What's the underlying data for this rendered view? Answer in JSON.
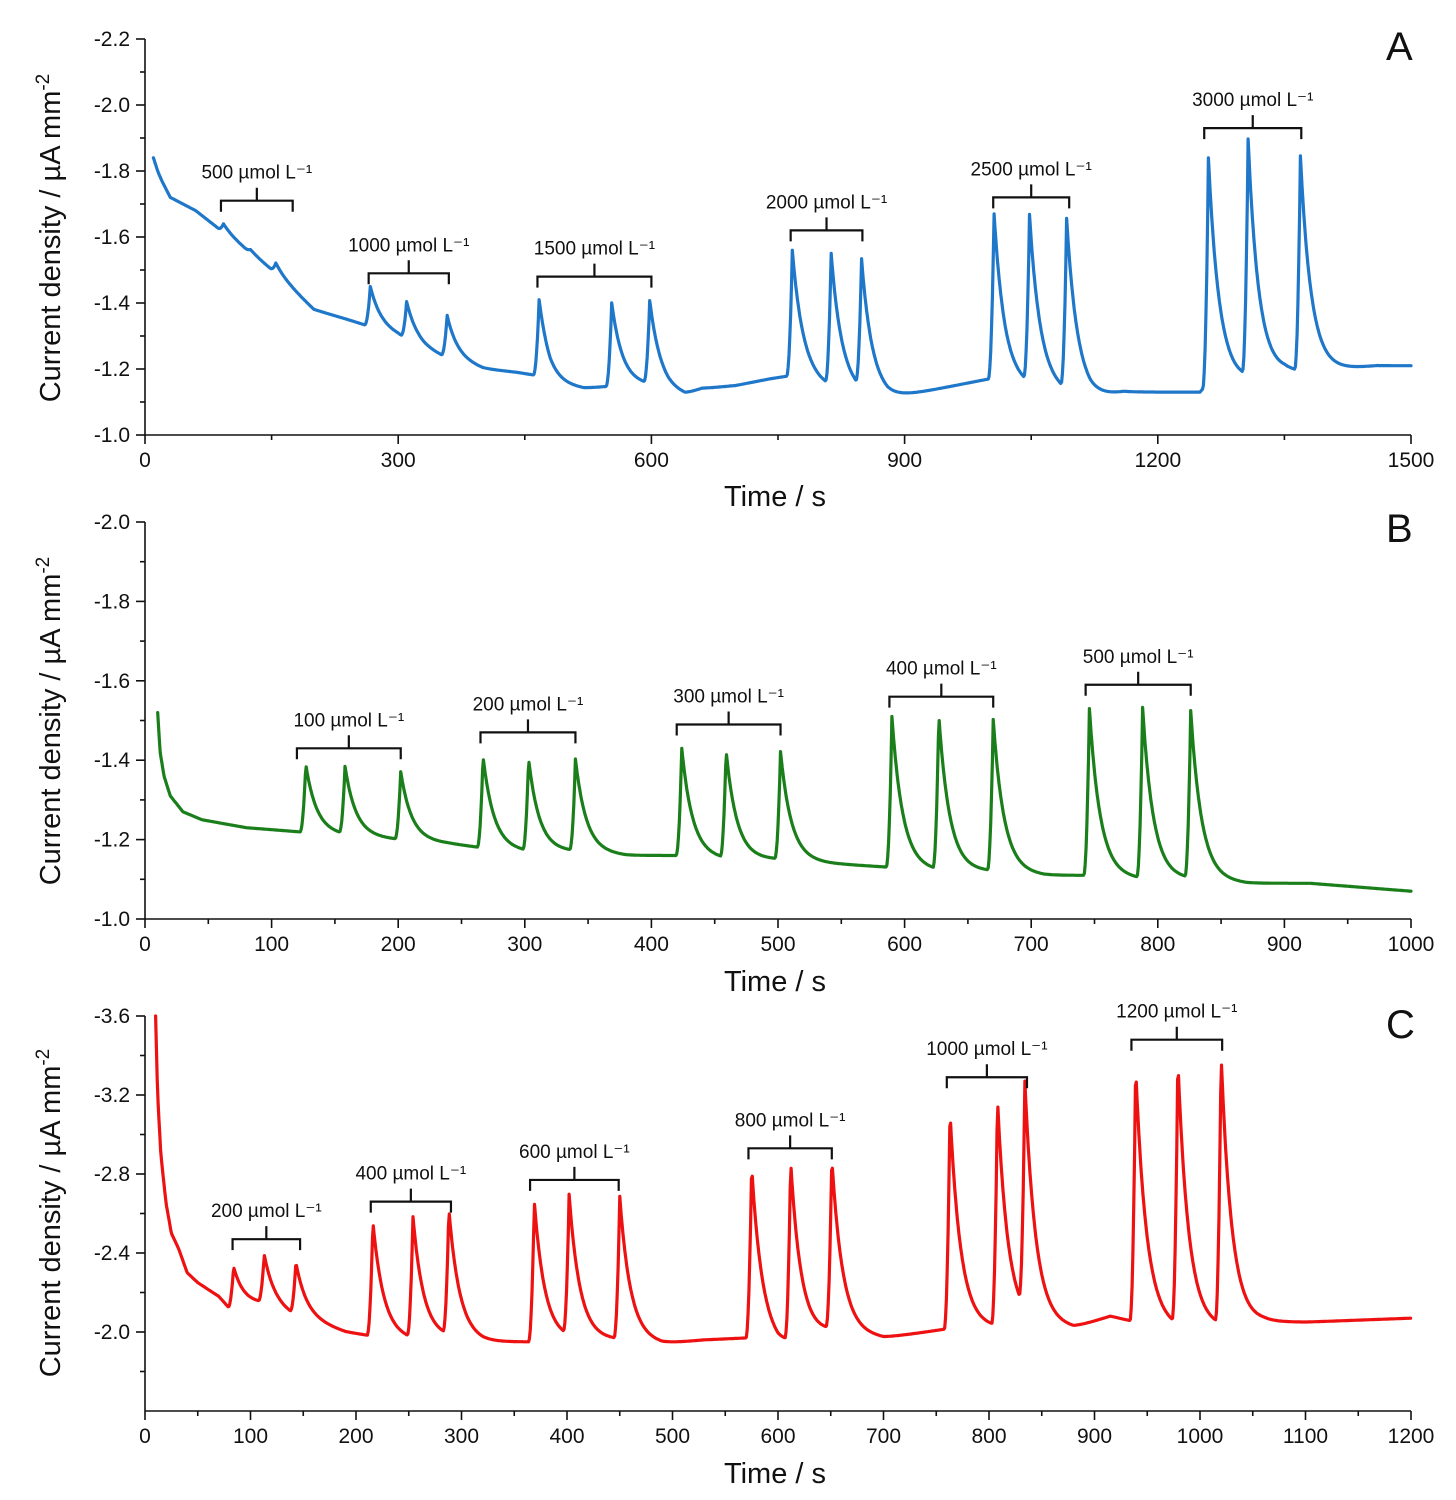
{
  "chart_data": [
    {
      "type": "line",
      "panel": "A",
      "color": "#1f77c9",
      "xlabel": "Time / s",
      "ylabel": "Current density / µA mm",
      "ylabel_sup": "-2",
      "xlim": [
        0,
        1500
      ],
      "ylim": [
        -1.0,
        -2.2
      ],
      "xticks": [
        0,
        300,
        600,
        900,
        1200,
        1500
      ],
      "yticks": [
        "-1.0",
        "-1.2",
        "-1.4",
        "-1.6",
        "-1.8",
        "-2.0",
        "-2.2"
      ],
      "ytick_values": [
        -1.0,
        -1.2,
        -1.4,
        -1.6,
        -1.8,
        -2.0,
        -2.2
      ],
      "baseline": [
        [
          10,
          -1.84
        ],
        [
          15,
          -1.8
        ],
        [
          20,
          -1.77
        ],
        [
          30,
          -1.72
        ],
        [
          60,
          -1.68
        ],
        [
          90,
          -1.62
        ],
        [
          120,
          -1.56
        ],
        [
          150,
          -1.5
        ],
        [
          175,
          -1.44
        ],
        [
          200,
          -1.38
        ],
        [
          240,
          -1.35
        ],
        [
          265,
          -1.33
        ],
        [
          300,
          -1.3
        ],
        [
          330,
          -1.26
        ],
        [
          360,
          -1.23
        ],
        [
          400,
          -1.2
        ],
        [
          440,
          -1.19
        ],
        [
          465,
          -1.18
        ],
        [
          480,
          -1.15
        ],
        [
          520,
          -1.14
        ],
        [
          560,
          -1.15
        ],
        [
          600,
          -1.15
        ],
        [
          620,
          -1.13
        ],
        [
          640,
          -1.12
        ],
        [
          660,
          -1.14
        ],
        [
          700,
          -1.15
        ],
        [
          740,
          -1.17
        ],
        [
          765,
          -1.18
        ],
        [
          800,
          -1.15
        ],
        [
          850,
          -1.12
        ],
        [
          880,
          -1.11
        ],
        [
          920,
          -1.13
        ],
        [
          960,
          -1.15
        ],
        [
          1000,
          -1.17
        ],
        [
          1020,
          -1.15
        ],
        [
          1060,
          -1.14
        ],
        [
          1100,
          -1.12
        ],
        [
          1120,
          -1.11
        ],
        [
          1160,
          -1.13
        ],
        [
          1200,
          -1.13
        ],
        [
          1250,
          -1.13
        ],
        [
          1260,
          -1.16
        ],
        [
          1290,
          -1.16
        ],
        [
          1320,
          -1.17
        ],
        [
          1350,
          -1.19
        ],
        [
          1380,
          -1.19
        ],
        [
          1420,
          -1.2
        ],
        [
          1460,
          -1.21
        ],
        [
          1500,
          -1.21
        ]
      ],
      "peaks": [
        [
          93,
          -1.64
        ],
        [
          125,
          -1.56
        ],
        [
          155,
          -1.52
        ],
        [
          267,
          -1.45
        ],
        [
          310,
          -1.4
        ],
        [
          358,
          -1.36
        ],
        [
          467,
          -1.41
        ],
        [
          553,
          -1.4
        ],
        [
          598,
          -1.4
        ],
        [
          767,
          -1.56
        ],
        [
          813,
          -1.54
        ],
        [
          849,
          -1.51
        ],
        [
          1006,
          -1.67
        ],
        [
          1048,
          -1.65
        ],
        [
          1092,
          -1.64
        ],
        [
          1260,
          -1.84
        ],
        [
          1307,
          -1.88
        ],
        [
          1369,
          -1.84
        ]
      ],
      "annotations": [
        {
          "text": "500 µmol L⁻¹",
          "x_start": 90,
          "x_end": 175,
          "y": -1.71
        },
        {
          "text": "1000 µmol L⁻¹",
          "x_start": 265,
          "x_end": 360,
          "y": -1.49
        },
        {
          "text": "1500 µmol L⁻¹",
          "x_start": 465,
          "x_end": 600,
          "y": -1.48
        },
        {
          "text": "2000 µmol L⁻¹",
          "x_start": 765,
          "x_end": 850,
          "y": -1.62
        },
        {
          "text": "2500 µmol L⁻¹",
          "x_start": 1005,
          "x_end": 1095,
          "y": -1.72
        },
        {
          "text": "3000 µmol L⁻¹",
          "x_start": 1255,
          "x_end": 1370,
          "y": -1.93
        }
      ]
    },
    {
      "type": "line",
      "panel": "B",
      "color": "#1a7f1a",
      "xlabel": "Time / s",
      "ylabel": "Current density / µA mm",
      "ylabel_sup": "-2",
      "xlim": [
        0,
        1000
      ],
      "ylim": [
        -1.0,
        -2.0
      ],
      "xticks": [
        0,
        100,
        200,
        300,
        400,
        500,
        600,
        700,
        800,
        900,
        1000
      ],
      "yticks": [
        "-1.0",
        "-1.2",
        "-1.4",
        "-1.6",
        "-1.8",
        "-2.0"
      ],
      "ytick_values": [
        -1.0,
        -1.2,
        -1.4,
        -1.6,
        -1.8,
        -2.0
      ],
      "baseline": [
        [
          10,
          -1.52
        ],
        [
          12,
          -1.42
        ],
        [
          15,
          -1.36
        ],
        [
          20,
          -1.31
        ],
        [
          30,
          -1.27
        ],
        [
          45,
          -1.25
        ],
        [
          80,
          -1.23
        ],
        [
          120,
          -1.22
        ],
        [
          160,
          -1.21
        ],
        [
          200,
          -1.2
        ],
        [
          240,
          -1.19
        ],
        [
          265,
          -1.18
        ],
        [
          300,
          -1.17
        ],
        [
          340,
          -1.17
        ],
        [
          380,
          -1.16
        ],
        [
          420,
          -1.16
        ],
        [
          460,
          -1.15
        ],
        [
          500,
          -1.15
        ],
        [
          540,
          -1.14
        ],
        [
          590,
          -1.13
        ],
        [
          630,
          -1.12
        ],
        [
          670,
          -1.12
        ],
        [
          710,
          -1.11
        ],
        [
          745,
          -1.11
        ],
        [
          790,
          -1.1
        ],
        [
          830,
          -1.1
        ],
        [
          870,
          -1.09
        ],
        [
          920,
          -1.09
        ],
        [
          960,
          -1.08
        ],
        [
          1000,
          -1.07
        ]
      ],
      "peaks": [
        [
          127,
          -1.39
        ],
        [
          158,
          -1.38
        ],
        [
          202,
          -1.37
        ],
        [
          267,
          -1.41
        ],
        [
          303,
          -1.4
        ],
        [
          340,
          -1.4
        ],
        [
          424,
          -1.43
        ],
        [
          459,
          -1.42
        ],
        [
          502,
          -1.42
        ],
        [
          590,
          -1.51
        ],
        [
          627,
          -1.51
        ],
        [
          670,
          -1.5
        ],
        [
          746,
          -1.53
        ],
        [
          788,
          -1.53
        ],
        [
          826,
          -1.52
        ]
      ],
      "annotations": [
        {
          "text": "100 µmol L⁻¹",
          "x_start": 120,
          "x_end": 202,
          "y": -1.43
        },
        {
          "text": "200 µmol L⁻¹",
          "x_start": 265,
          "x_end": 340,
          "y": -1.47
        },
        {
          "text": "300 µmol L⁻¹",
          "x_start": 420,
          "x_end": 502,
          "y": -1.49
        },
        {
          "text": "400 µmol L⁻¹",
          "x_start": 588,
          "x_end": 670,
          "y": -1.56
        },
        {
          "text": "500 µmol L⁻¹",
          "x_start": 743,
          "x_end": 826,
          "y": -1.59
        }
      ]
    },
    {
      "type": "line",
      "panel": "C",
      "color": "#ee1111",
      "xlabel": "Time / s",
      "ylabel": "Current density / µA mm",
      "ylabel_sup": "-2",
      "xlim": [
        0,
        1200
      ],
      "ylim": [
        -1.6,
        -3.6
      ],
      "xticks": [
        0,
        100,
        200,
        300,
        400,
        500,
        600,
        700,
        800,
        900,
        1000,
        1100,
        1200
      ],
      "yticks": [
        "-2.0",
        "-2.4",
        "-2.8",
        "-3.2",
        "-3.6"
      ],
      "ytick_values": [
        -2.0,
        -2.4,
        -2.8,
        -3.2,
        -3.6
      ],
      "baseline": [
        [
          10,
          -3.6
        ],
        [
          12,
          -3.2
        ],
        [
          15,
          -2.9
        ],
        [
          20,
          -2.65
        ],
        [
          25,
          -2.5
        ],
        [
          32,
          -2.42
        ],
        [
          40,
          -2.3
        ],
        [
          50,
          -2.25
        ],
        [
          70,
          -2.18
        ],
        [
          80,
          -2.12
        ],
        [
          110,
          -2.14
        ],
        [
          140,
          -2.08
        ],
        [
          160,
          -2.05
        ],
        [
          190,
          -2.0
        ],
        [
          215,
          -1.98
        ],
        [
          250,
          -1.96
        ],
        [
          290,
          -1.97
        ],
        [
          320,
          -1.95
        ],
        [
          365,
          -1.95
        ],
        [
          400,
          -1.96
        ],
        [
          450,
          -1.96
        ],
        [
          490,
          -1.94
        ],
        [
          530,
          -1.96
        ],
        [
          570,
          -1.97
        ],
        [
          600,
          -1.92
        ],
        [
          650,
          -2.0
        ],
        [
          700,
          -1.97
        ],
        [
          740,
          -2.0
        ],
        [
          765,
          -2.02
        ],
        [
          800,
          -2.02
        ],
        [
          840,
          -2.04
        ],
        [
          880,
          -2.02
        ],
        [
          915,
          -2.08
        ],
        [
          940,
          -2.05
        ],
        [
          975,
          -2.02
        ],
        [
          1020,
          -2.02
        ],
        [
          1060,
          -2.05
        ],
        [
          1100,
          -2.05
        ],
        [
          1150,
          -2.06
        ],
        [
          1200,
          -2.07
        ]
      ],
      "peaks": [
        [
          84,
          -2.33
        ],
        [
          113,
          -2.38
        ],
        [
          143,
          -2.34
        ],
        [
          216,
          -2.56
        ],
        [
          254,
          -2.57
        ],
        [
          288,
          -2.6
        ],
        [
          369,
          -2.66
        ],
        [
          402,
          -2.67
        ],
        [
          450,
          -2.68
        ],
        [
          575,
          -2.84
        ],
        [
          612,
          -2.84
        ],
        [
          651,
          -2.86
        ],
        [
          763,
          -3.12
        ],
        [
          808,
          -3.17
        ],
        [
          834,
          -3.18
        ],
        [
          939,
          -3.34
        ],
        [
          979,
          -3.35
        ],
        [
          1020,
          -3.38
        ]
      ],
      "annotations": [
        {
          "text": "200 µmol L⁻¹",
          "x_start": 83,
          "x_end": 147,
          "y": -2.47
        },
        {
          "text": "400 µmol L⁻¹",
          "x_start": 214,
          "x_end": 290,
          "y": -2.66
        },
        {
          "text": "600 µmol L⁻¹",
          "x_start": 365,
          "x_end": 449,
          "y": -2.77
        },
        {
          "text": "800 µmol L⁻¹",
          "x_start": 572,
          "x_end": 651,
          "y": -2.93
        },
        {
          "text": "1000 µmol L⁻¹",
          "x_start": 760,
          "x_end": 836,
          "y": -3.29
        },
        {
          "text": "1200 µmol L⁻¹",
          "x_start": 935,
          "x_end": 1021,
          "y": -3.48
        }
      ]
    }
  ]
}
